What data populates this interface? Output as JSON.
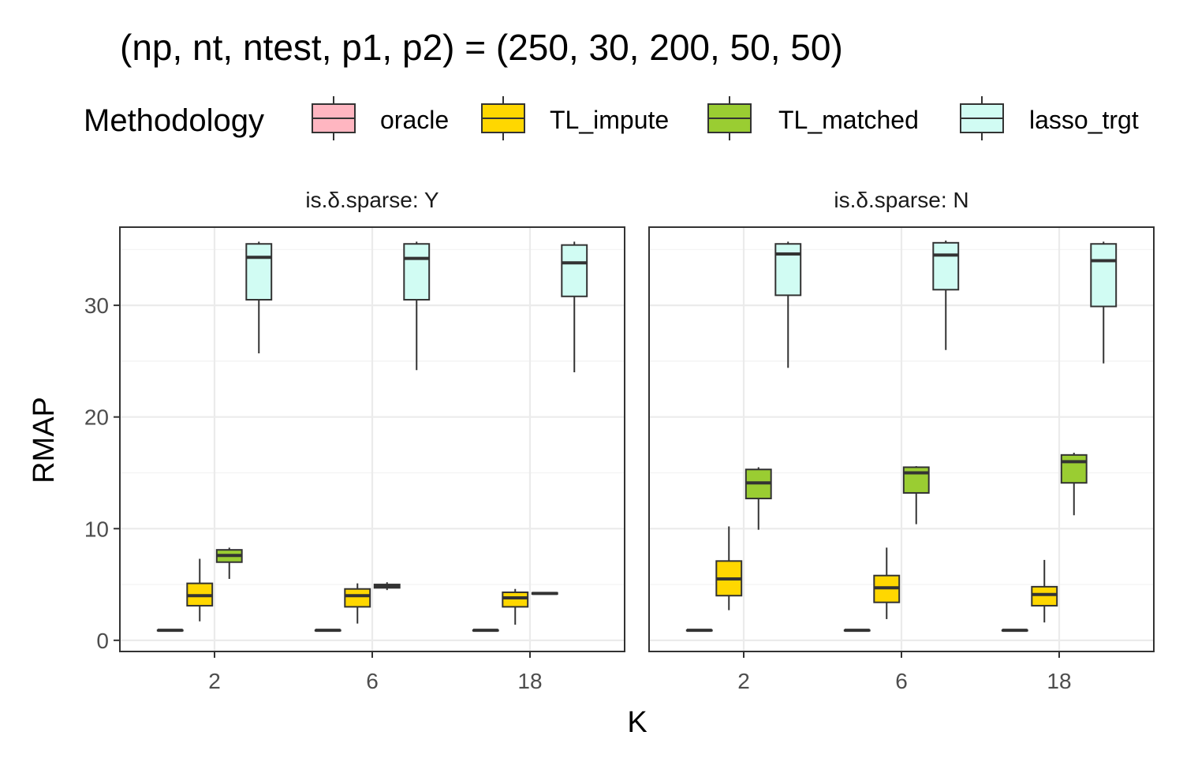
{
  "chart_data": {
    "type": "boxplot",
    "title": "(np, nt, ntest, p1, p2) = (250, 30, 200, 50, 50)",
    "xlabel": "K",
    "ylabel": "RMAP",
    "ylim": [
      -1,
      37
    ],
    "yticks": [
      0,
      10,
      20,
      30
    ],
    "categories": [
      "2",
      "6",
      "18"
    ],
    "legend": {
      "title": "Methodology",
      "position": "top",
      "entries": [
        {
          "name": "oracle",
          "color": "#ffb6c1"
        },
        {
          "name": "TL_impute",
          "color": "#ffd700"
        },
        {
          "name": "TL_matched",
          "color": "#9acd32"
        },
        {
          "name": "lasso_trgt",
          "color": "#d1fcf3"
        }
      ]
    },
    "panels": [
      {
        "strip": "is.δ.sparse: Y",
        "groups": [
          {
            "K": "2",
            "boxes": [
              {
                "method": "oracle",
                "min": 0.9,
                "q1": 0.9,
                "median": 0.9,
                "q3": 0.9,
                "max": 0.9
              },
              {
                "method": "TL_impute",
                "min": 1.7,
                "q1": 3.1,
                "median": 4.0,
                "q3": 5.1,
                "max": 7.3
              },
              {
                "method": "TL_matched",
                "min": 5.5,
                "q1": 7.0,
                "median": 7.6,
                "q3": 8.1,
                "max": 8.3
              },
              {
                "method": "lasso_trgt",
                "min": 25.7,
                "q1": 30.5,
                "median": 34.3,
                "q3": 35.5,
                "max": 35.7
              }
            ]
          },
          {
            "K": "6",
            "boxes": [
              {
                "method": "oracle",
                "min": 0.9,
                "q1": 0.9,
                "median": 0.9,
                "q3": 0.9,
                "max": 0.9
              },
              {
                "method": "TL_impute",
                "min": 1.5,
                "q1": 3.0,
                "median": 4.0,
                "q3": 4.6,
                "max": 5.1
              },
              {
                "method": "TL_matched",
                "min": 4.5,
                "q1": 4.7,
                "median": 4.9,
                "q3": 5.0,
                "max": 5.2
              },
              {
                "method": "lasso_trgt",
                "min": 24.2,
                "q1": 30.5,
                "median": 34.2,
                "q3": 35.5,
                "max": 35.7
              }
            ]
          },
          {
            "K": "18",
            "boxes": [
              {
                "method": "oracle",
                "min": 0.9,
                "q1": 0.9,
                "median": 0.9,
                "q3": 0.9,
                "max": 0.9
              },
              {
                "method": "TL_impute",
                "min": 1.4,
                "q1": 3.0,
                "median": 3.8,
                "q3": 4.3,
                "max": 4.6
              },
              {
                "method": "TL_matched",
                "min": 4.1,
                "q1": 4.15,
                "median": 4.2,
                "q3": 4.25,
                "max": 4.3
              },
              {
                "method": "lasso_trgt",
                "min": 24.0,
                "q1": 30.8,
                "median": 33.8,
                "q3": 35.4,
                "max": 35.7
              }
            ]
          }
        ]
      },
      {
        "strip": "is.δ.sparse: N",
        "groups": [
          {
            "K": "2",
            "boxes": [
              {
                "method": "oracle",
                "min": 0.9,
                "q1": 0.9,
                "median": 0.9,
                "q3": 0.9,
                "max": 0.9
              },
              {
                "method": "TL_impute",
                "min": 2.7,
                "q1": 4.0,
                "median": 5.5,
                "q3": 7.1,
                "max": 10.2
              },
              {
                "method": "TL_matched",
                "min": 9.9,
                "q1": 12.7,
                "median": 14.1,
                "q3": 15.3,
                "max": 15.5
              },
              {
                "method": "lasso_trgt",
                "min": 24.4,
                "q1": 30.9,
                "median": 34.6,
                "q3": 35.5,
                "max": 35.7
              }
            ]
          },
          {
            "K": "6",
            "boxes": [
              {
                "method": "oracle",
                "min": 0.9,
                "q1": 0.9,
                "median": 0.9,
                "q3": 0.9,
                "max": 0.9
              },
              {
                "method": "TL_impute",
                "min": 1.9,
                "q1": 3.4,
                "median": 4.7,
                "q3": 5.8,
                "max": 8.3
              },
              {
                "method": "TL_matched",
                "min": 10.4,
                "q1": 13.2,
                "median": 15.0,
                "q3": 15.5,
                "max": 15.6
              },
              {
                "method": "lasso_trgt",
                "min": 26.0,
                "q1": 31.4,
                "median": 34.5,
                "q3": 35.6,
                "max": 35.8
              }
            ]
          },
          {
            "K": "18",
            "boxes": [
              {
                "method": "oracle",
                "min": 0.9,
                "q1": 0.9,
                "median": 0.9,
                "q3": 0.9,
                "max": 0.9
              },
              {
                "method": "TL_impute",
                "min": 1.6,
                "q1": 3.1,
                "median": 4.1,
                "q3": 4.8,
                "max": 7.2
              },
              {
                "method": "TL_matched",
                "min": 11.2,
                "q1": 14.1,
                "median": 16.0,
                "q3": 16.6,
                "max": 16.8
              },
              {
                "method": "lasso_trgt",
                "min": 24.8,
                "q1": 29.9,
                "median": 34.0,
                "q3": 35.5,
                "max": 35.7
              }
            ]
          }
        ]
      }
    ]
  }
}
